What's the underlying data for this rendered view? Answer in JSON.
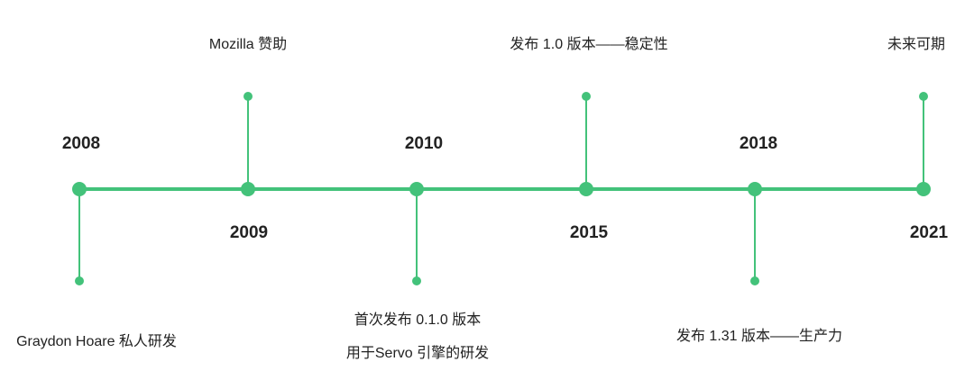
{
  "accent_color": "#43c27a",
  "events": [
    {
      "year": "2008",
      "lines": [
        "Graydon Hoare 私人研发"
      ],
      "side": "below"
    },
    {
      "year": "2009",
      "lines": [
        "Mozilla 赞助"
      ],
      "side": "above"
    },
    {
      "year": "2010",
      "lines": [
        "首次发布 0.1.0 版本",
        "用于Servo 引擎的研发"
      ],
      "side": "below"
    },
    {
      "year": "2015",
      "lines": [
        "发布 1.0 版本——稳定性"
      ],
      "side": "above"
    },
    {
      "year": "2018",
      "lines": [
        "发布 1.31 版本——生产力"
      ],
      "side": "below"
    },
    {
      "year": "2021",
      "lines": [
        "未来可期"
      ],
      "side": "above"
    }
  ]
}
